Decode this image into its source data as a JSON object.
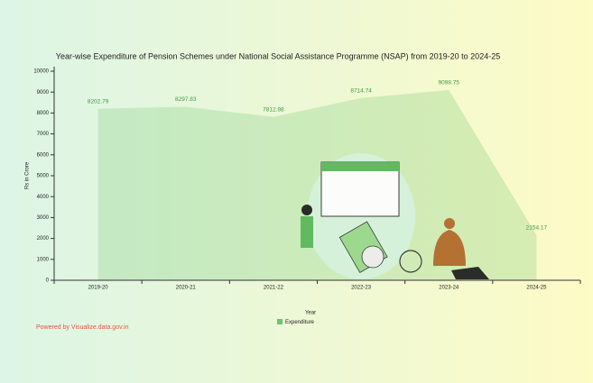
{
  "chart_data": {
    "type": "area",
    "title": "Year-wise Expenditure of Pension Schemes under National Social Assistance Programme (NSAP) from 2019-20 to 2024-25",
    "x_label": "Year",
    "y_label": "Rs in Crore",
    "categories": [
      "2019-20",
      "2020-21",
      "2021-22",
      "2022-23",
      "2023-24",
      "2024-25"
    ],
    "series": [
      {
        "name": "Expenditure",
        "color": "#6cc46c",
        "values": [
          8202.79,
          8297.83,
          7812.98,
          8714.74,
          9098.75,
          2154.17
        ]
      }
    ],
    "ylim": [
      0,
      10000
    ],
    "yticks": [
      0,
      1000,
      2000,
      3000,
      4000,
      5000,
      6000,
      7000,
      8000,
      9000,
      10000
    ],
    "grid": false
  },
  "footer": "Powered by Visualize.data.gov.in"
}
